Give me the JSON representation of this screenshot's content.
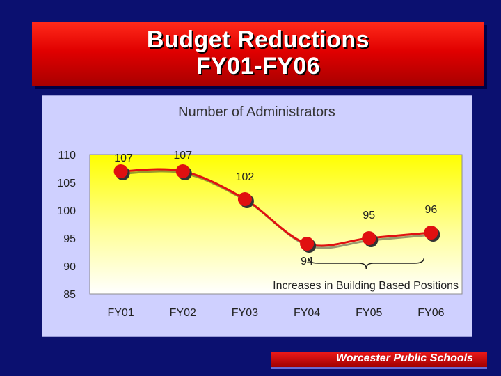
{
  "slide": {
    "title_line1": "Budget Reductions",
    "title_line2": "FY01-FY06",
    "footer": "Worcester Public Schools"
  },
  "colors": {
    "background": "#0b1070",
    "title_banner": "#e00000",
    "series_line": "#e01010",
    "plot_top": "#ffff00",
    "plot_bottom": "#ffffff",
    "panel": "#cfd0ff"
  },
  "chart_data": {
    "type": "line",
    "title": "Number of Administrators",
    "categories": [
      "FY01",
      "FY02",
      "FY03",
      "FY04",
      "FY05",
      "FY06"
    ],
    "values": [
      107,
      107,
      102,
      94,
      95,
      96
    ],
    "data_labels": [
      "107",
      "107",
      "102",
      "94",
      "95",
      "96"
    ],
    "ylim": [
      85,
      110
    ],
    "yticks": [
      110,
      105,
      100,
      95,
      90,
      85
    ],
    "xlabel": "",
    "ylabel": "",
    "grid": false,
    "legend": "none",
    "annotation": {
      "text": "Increases in Building Based Positions",
      "spans_categories": [
        "FY04",
        "FY06"
      ]
    }
  }
}
